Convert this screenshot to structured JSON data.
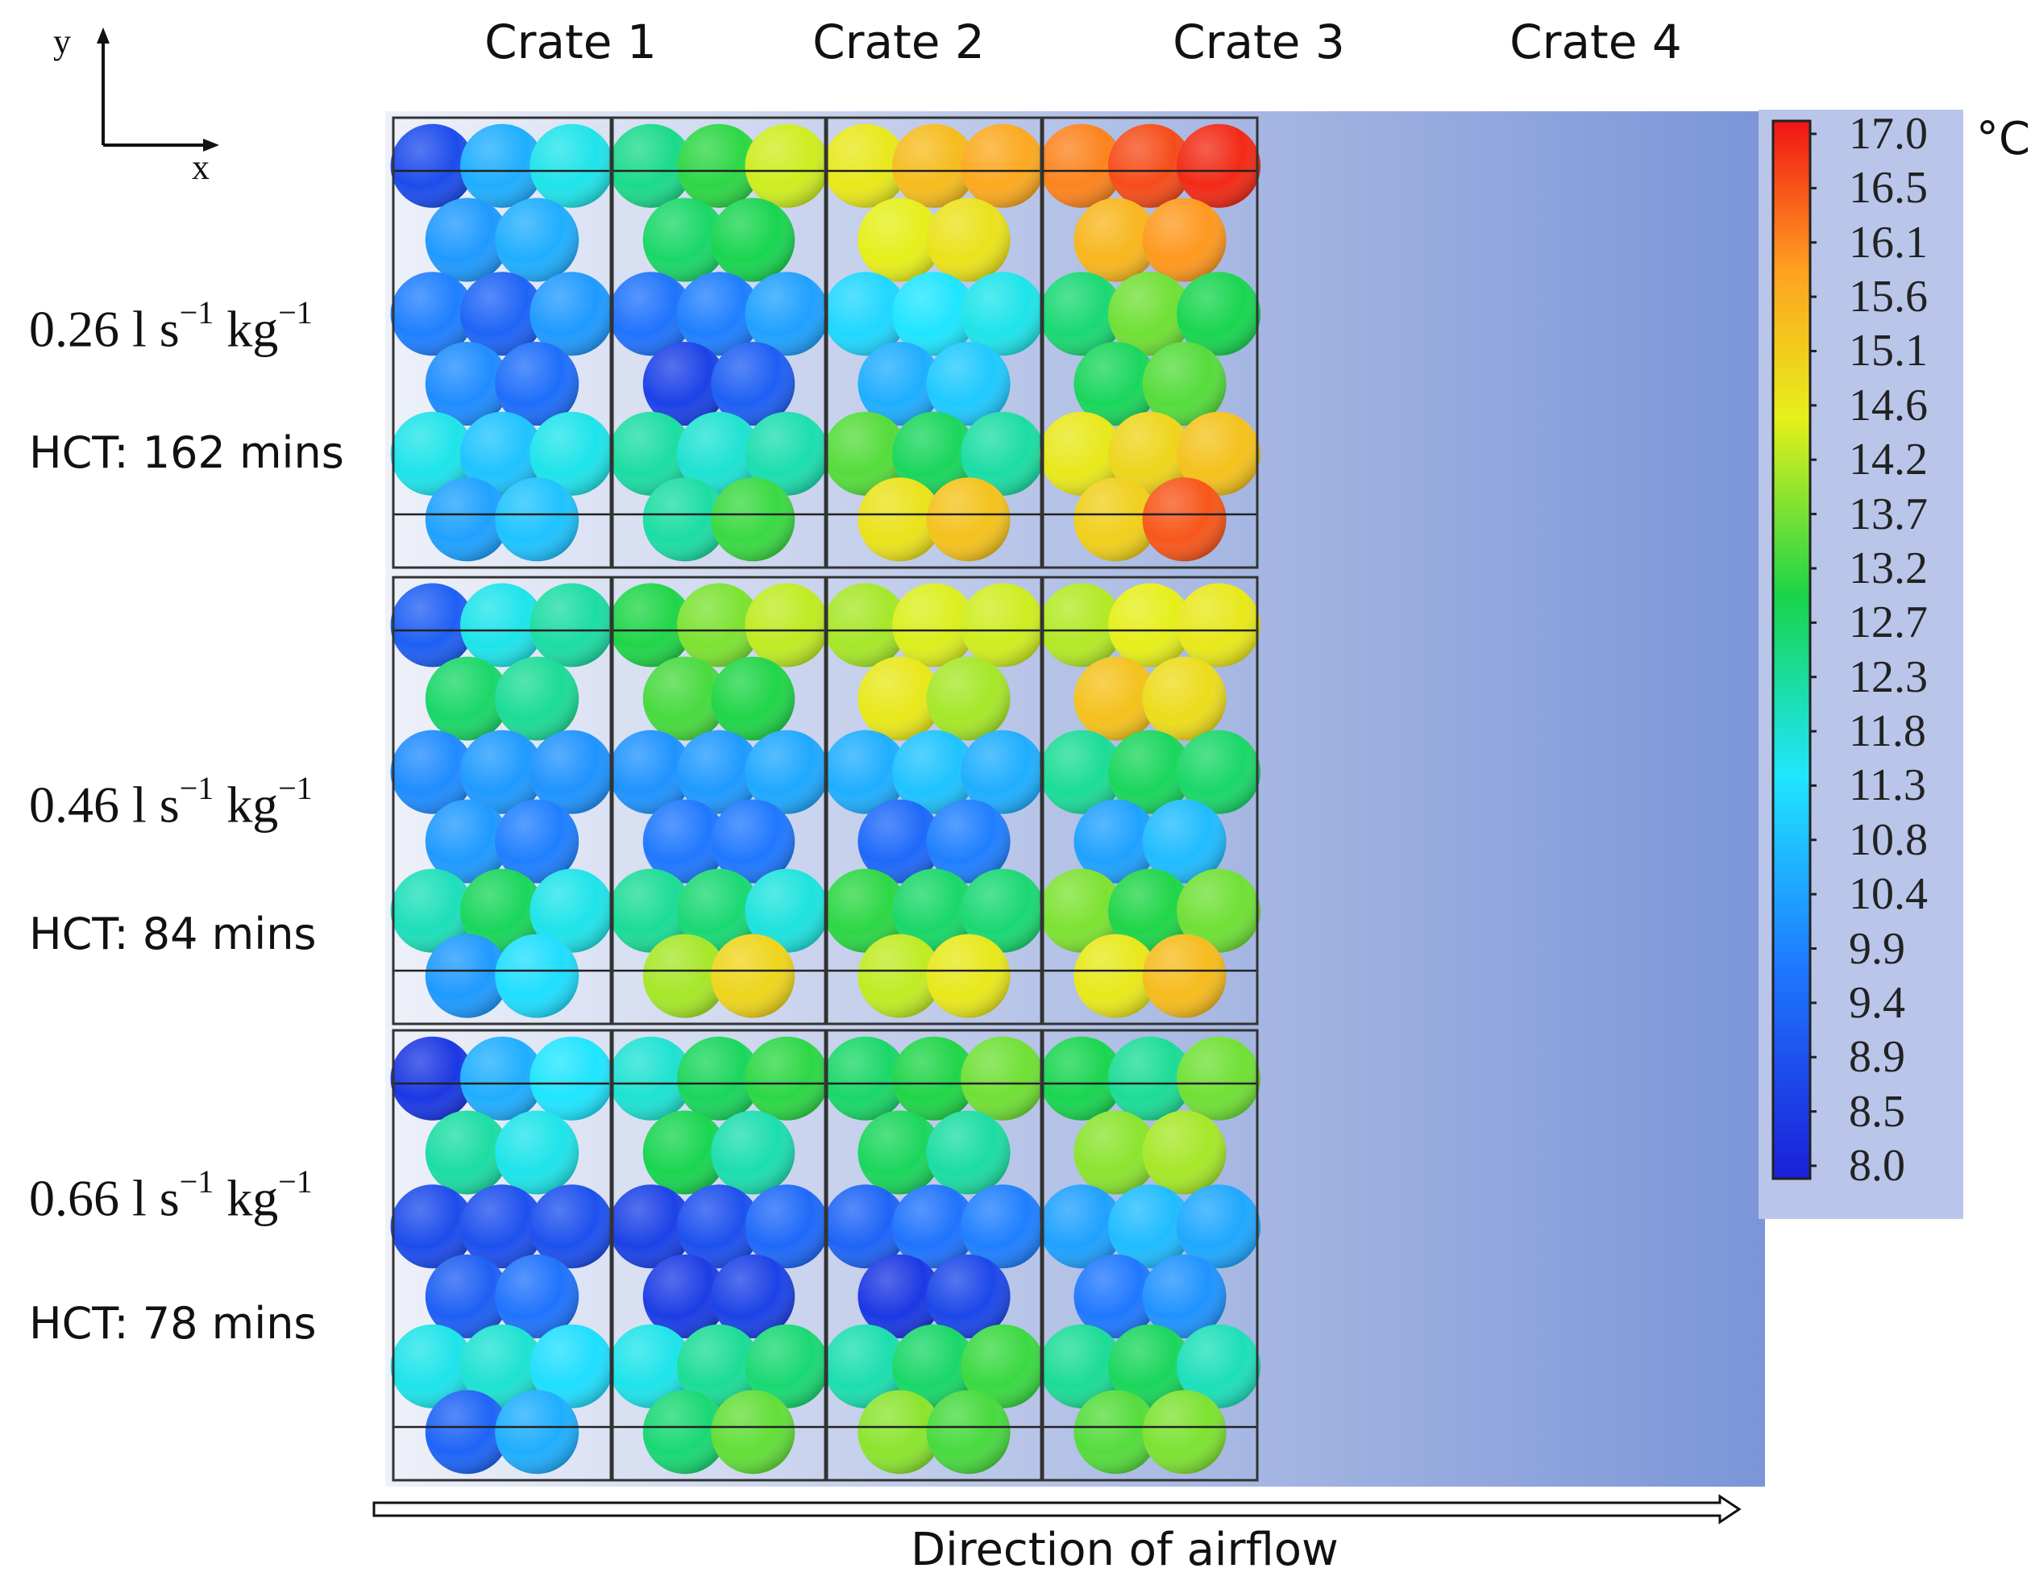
{
  "axes": {
    "y_label": "y",
    "x_label": "x"
  },
  "crates": [
    "Crate 1",
    "Crate 2",
    "Crate 3",
    "Crate 4"
  ],
  "rows": [
    {
      "rate_value": "0.26",
      "rate_unit": "l s",
      "rate_exp1": "−1",
      "rate_unit2": "kg",
      "rate_exp2": "−1",
      "hct": "HCT: 162 mins"
    },
    {
      "rate_value": "0.46",
      "rate_unit": "l s",
      "rate_exp1": "−1",
      "rate_unit2": "kg",
      "rate_exp2": "−1",
      "hct": "HCT: 84 mins"
    },
    {
      "rate_value": "0.66",
      "rate_unit": "l s",
      "rate_exp1": "−1",
      "rate_unit2": "kg",
      "rate_exp2": "−1",
      "hct": "HCT: 78 mins"
    }
  ],
  "colorbar": {
    "unit": "°C",
    "ticks": [
      "17.0",
      "16.5",
      "16.1",
      "15.6",
      "15.1",
      "14.6",
      "14.2",
      "13.7",
      "13.2",
      "12.7",
      "12.3",
      "11.8",
      "11.3",
      "10.8",
      "10.4",
      "9.9",
      "9.4",
      "8.9",
      "8.5",
      "8.0"
    ],
    "min": 8.0,
    "max": 17.0
  },
  "airflow_label": "Direction of airflow",
  "temperatures": [
    [
      [
        8.9,
        10.6,
        11.6,
        10.3,
        10.6,
        9.9,
        9.4,
        10.3,
        10.1,
        9.6,
        11.6,
        10.9,
        11.6,
        10.4,
        10.9
      ],
      [
        12.4,
        13.1,
        14.3,
        12.7,
        12.9,
        9.7,
        9.9,
        10.4,
        8.7,
        9.3,
        12.2,
        11.8,
        12.1,
        12.2,
        13.2
      ],
      [
        14.6,
        15.3,
        15.6,
        14.5,
        14.7,
        11.2,
        11.4,
        11.6,
        10.6,
        11.0,
        13.4,
        12.8,
        12.2,
        14.7,
        15.2
      ],
      [
        16.0,
        16.5,
        16.8,
        15.4,
        15.8,
        12.6,
        13.6,
        12.9,
        12.8,
        13.4,
        14.6,
        14.9,
        15.2,
        15.0,
        16.4
      ]
    ],
    [
      [
        9.3,
        11.6,
        12.2,
        12.7,
        12.3,
        10.1,
        10.3,
        10.2,
        10.3,
        9.9,
        12.0,
        12.8,
        11.6,
        10.3,
        11.3
      ],
      [
        13.0,
        13.7,
        14.2,
        13.3,
        13.0,
        10.2,
        10.3,
        10.5,
        9.8,
        9.8,
        12.3,
        12.6,
        11.7,
        14.0,
        14.9
      ],
      [
        14.0,
        14.4,
        14.3,
        14.6,
        14.0,
        10.6,
        10.9,
        10.6,
        9.5,
        9.9,
        13.1,
        12.7,
        12.6,
        14.2,
        14.6
      ],
      [
        14.1,
        14.5,
        14.6,
        15.2,
        14.8,
        12.3,
        12.8,
        12.7,
        10.4,
        10.8,
        13.7,
        13.0,
        13.6,
        14.6,
        15.3
      ]
    ],
    [
      [
        8.5,
        10.6,
        11.4,
        12.2,
        11.6,
        8.9,
        9.0,
        9.0,
        9.3,
        9.7,
        11.6,
        11.8,
        11.3,
        9.4,
        10.6
      ],
      [
        11.8,
        12.8,
        13.1,
        12.9,
        12.1,
        8.7,
        9.0,
        9.5,
        8.6,
        8.7,
        11.6,
        12.3,
        12.6,
        12.6,
        13.5
      ],
      [
        12.7,
        13.0,
        13.6,
        12.8,
        12.2,
        9.4,
        9.7,
        9.9,
        8.5,
        8.8,
        12.1,
        12.7,
        13.2,
        13.8,
        13.3
      ],
      [
        12.9,
        12.3,
        13.6,
        13.8,
        14.0,
        10.4,
        10.8,
        10.5,
        9.8,
        10.2,
        12.3,
        12.8,
        12.0,
        13.4,
        13.7
      ]
    ]
  ]
}
